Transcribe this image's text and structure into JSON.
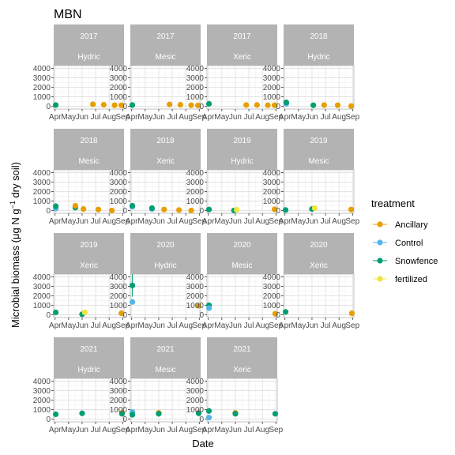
{
  "chart_data": {
    "type": "scatter",
    "title": "MBN",
    "xlabel": "Date",
    "ylabel_main": "Microbial biomass (μg N g",
    "ylabel_sup": "−1",
    "ylabel_end": " dry soil)",
    "x_ticks": [
      "Apr",
      "May",
      "Jun",
      "Jul",
      "Aug",
      "Sep"
    ],
    "x_range": [
      3.9,
      9.1
    ],
    "y_ticks": [
      0,
      1000,
      2000,
      3000,
      4000
    ],
    "y_ticks_labels": [
      "0",
      "1000",
      "2000",
      "3000",
      "4000"
    ],
    "y_range": [
      -300,
      4300
    ],
    "grid": true,
    "legend_position": "right",
    "legend": {
      "title": "treatment",
      "entries": [
        {
          "name": "Ancillary",
          "color": "#E69F00"
        },
        {
          "name": "Control",
          "color": "#56B4E9"
        },
        {
          "name": "Snowfence",
          "color": "#009E73"
        },
        {
          "name": "fertilized",
          "color": "#F0E442"
        }
      ]
    },
    "panels": [
      {
        "year": "2017",
        "site": "Hydric",
        "points": [
          {
            "t": "Snowfence",
            "x": 4.05,
            "y": 120
          },
          {
            "t": "Ancillary",
            "x": 6.8,
            "y": 200
          },
          {
            "t": "Ancillary",
            "x": 7.6,
            "y": 150
          },
          {
            "t": "Ancillary",
            "x": 8.4,
            "y": 100
          },
          {
            "t": "Ancillary",
            "x": 8.9,
            "y": 100
          }
        ]
      },
      {
        "year": "2017",
        "site": "Mesic",
        "points": [
          {
            "t": "Snowfence",
            "x": 4.05,
            "y": 120
          },
          {
            "t": "Ancillary",
            "x": 6.8,
            "y": 180
          },
          {
            "t": "Ancillary",
            "x": 7.6,
            "y": 150
          },
          {
            "t": "Ancillary",
            "x": 8.4,
            "y": 100
          },
          {
            "t": "Ancillary",
            "x": 8.9,
            "y": 80
          }
        ]
      },
      {
        "year": "2017",
        "site": "Xeric",
        "points": [
          {
            "t": "Snowfence",
            "x": 4.05,
            "y": 250
          },
          {
            "t": "Ancillary",
            "x": 6.8,
            "y": 120
          },
          {
            "t": "Ancillary",
            "x": 7.6,
            "y": 130
          },
          {
            "t": "Ancillary",
            "x": 8.4,
            "y": 100
          },
          {
            "t": "Ancillary",
            "x": 8.9,
            "y": 100
          }
        ]
      },
      {
        "year": "2018",
        "site": "Hydric",
        "points": [
          {
            "t": "Control",
            "x": 4.1,
            "y": 250
          },
          {
            "t": "Snowfence",
            "x": 4.1,
            "y": 400
          },
          {
            "t": "Snowfence",
            "x": 6.1,
            "y": 100
          },
          {
            "t": "Ancillary",
            "x": 6.9,
            "y": 120
          },
          {
            "t": "Ancillary",
            "x": 7.9,
            "y": 100
          },
          {
            "t": "Ancillary",
            "x": 8.9,
            "y": 20
          }
        ]
      },
      {
        "year": "2018",
        "site": "Mesic",
        "points": [
          {
            "t": "Control",
            "x": 4.05,
            "y": 200
          },
          {
            "t": "Snowfence",
            "x": 4.05,
            "y": 450
          },
          {
            "t": "Snowfence",
            "x": 5.5,
            "y": 300
          },
          {
            "t": "Ancillary",
            "x": 5.5,
            "y": 500
          },
          {
            "t": "Ancillary",
            "x": 6.1,
            "y": 150
          },
          {
            "t": "Ancillary",
            "x": 7.2,
            "y": 100
          },
          {
            "t": "Ancillary",
            "x": 8.2,
            "y": 0
          }
        ]
      },
      {
        "year": "2018",
        "site": "Xeric",
        "points": [
          {
            "t": "Control",
            "x": 4.05,
            "y": 400
          },
          {
            "t": "Snowfence",
            "x": 4.05,
            "y": 500
          },
          {
            "t": "Control",
            "x": 5.5,
            "y": 150
          },
          {
            "t": "Snowfence",
            "x": 5.5,
            "y": 250
          },
          {
            "t": "Ancillary",
            "x": 6.4,
            "y": 100
          },
          {
            "t": "Ancillary",
            "x": 7.5,
            "y": 50
          },
          {
            "t": "Ancillary",
            "x": 8.4,
            "y": 0
          }
        ]
      },
      {
        "year": "2019",
        "site": "Hydric",
        "points": [
          {
            "t": "Snowfence",
            "x": 4.05,
            "y": 100
          },
          {
            "t": "Snowfence",
            "x": 5.9,
            "y": 0
          },
          {
            "t": "fertilized",
            "x": 6.1,
            "y": 80
          },
          {
            "t": "Ancillary",
            "x": 8.9,
            "y": 120
          }
        ]
      },
      {
        "year": "2019",
        "site": "Mesic",
        "points": [
          {
            "t": "Snowfence",
            "x": 4.05,
            "y": 50
          },
          {
            "t": "Snowfence",
            "x": 6.0,
            "y": 150
          },
          {
            "t": "fertilized",
            "x": 6.2,
            "y": 250
          },
          {
            "t": "Ancillary",
            "x": 8.9,
            "y": 100
          }
        ]
      },
      {
        "year": "2019",
        "site": "Xeric",
        "points": [
          {
            "t": "Snowfence",
            "x": 4.05,
            "y": 250
          },
          {
            "t": "Snowfence",
            "x": 6.0,
            "y": 50
          },
          {
            "t": "fertilized",
            "x": 6.2,
            "y": 250
          },
          {
            "t": "Ancillary",
            "x": 8.9,
            "y": 150
          }
        ]
      },
      {
        "year": "2020",
        "site": "Hydric",
        "points": [
          {
            "t": "Snowfence",
            "x": 4.05,
            "y": 3100,
            "ymin": 1900,
            "ymax": 4300
          },
          {
            "t": "Control",
            "x": 4.05,
            "y": 1350
          },
          {
            "t": "Ancillary",
            "x": 8.95,
            "y": 950
          }
        ]
      },
      {
        "year": "2020",
        "site": "Mesic",
        "points": [
          {
            "t": "Snowfence",
            "x": 4.05,
            "y": 1000
          },
          {
            "t": "Control",
            "x": 4.05,
            "y": 700
          },
          {
            "t": "Ancillary",
            "x": 8.95,
            "y": 100
          }
        ]
      },
      {
        "year": "2020",
        "site": "Xeric",
        "points": [
          {
            "t": "Snowfence",
            "x": 4.05,
            "y": 300
          },
          {
            "t": "Ancillary",
            "x": 8.95,
            "y": 150
          }
        ]
      },
      {
        "year": "2021",
        "site": "Hydric",
        "points": [
          {
            "t": "Snowfence",
            "x": 4.05,
            "y": 500
          },
          {
            "t": "Snowfence",
            "x": 6.0,
            "y": 600
          },
          {
            "t": "Ancillary",
            "x": 8.95,
            "y": 650
          },
          {
            "t": "Snowfence",
            "x": 8.95,
            "y": 550
          }
        ]
      },
      {
        "year": "2021",
        "site": "Mesic",
        "points": [
          {
            "t": "Ancillary",
            "x": 4.05,
            "y": 600
          },
          {
            "t": "Control",
            "x": 4.05,
            "y": 750
          },
          {
            "t": "Snowfence",
            "x": 4.05,
            "y": 450
          },
          {
            "t": "Ancillary",
            "x": 6.0,
            "y": 650
          },
          {
            "t": "Snowfence",
            "x": 6.0,
            "y": 550
          },
          {
            "t": "Ancillary",
            "x": 8.95,
            "y": 650
          },
          {
            "t": "Snowfence",
            "x": 8.95,
            "y": 600
          }
        ]
      },
      {
        "year": "2021",
        "site": "Xeric",
        "points": [
          {
            "t": "Snowfence",
            "x": 4.05,
            "y": 850
          },
          {
            "t": "Control",
            "x": 4.05,
            "y": 150
          },
          {
            "t": "Ancillary",
            "x": 6.0,
            "y": 650
          },
          {
            "t": "Snowfence",
            "x": 6.0,
            "y": 550
          },
          {
            "t": "Snowfence",
            "x": 8.95,
            "y": 550
          }
        ]
      }
    ]
  }
}
